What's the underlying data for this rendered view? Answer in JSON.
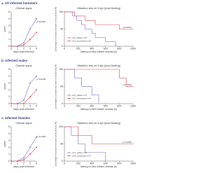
{
  "chart_data": [
    {
      "type": "line",
      "heading": "a. All infected hamsters",
      "title": "Clinical signs",
      "xlabel": "days post infection",
      "ylabel": "score",
      "xlim": [
        0,
        4
      ],
      "xticks": [
        0,
        1,
        2,
        3,
        4
      ],
      "ylim": [
        0,
        5
      ],
      "yticks": [
        0,
        1,
        2,
        3,
        4,
        5
      ],
      "annotation": "p=0.0083",
      "series": [
        {
          "name": "CoV_saline",
          "color": "#6b6bd6",
          "x": [
            0,
            1,
            2,
            3,
            4
          ],
          "values": [
            0,
            0,
            0.5,
            2.5,
            4
          ]
        },
        {
          "name": "CoV_ivermectin",
          "color": "#e03c3c",
          "x": [
            0,
            1,
            2,
            3,
            4
          ],
          "values": [
            0,
            0,
            0.2,
            1,
            2
          ]
        }
      ]
    },
    {
      "type": "step",
      "title": "Olfaction test at 3 dpi (food finding)",
      "xlabel": "latency to find hidden cereals (s)",
      "ylabel": "percentage of animals that have not found food (%)",
      "xlim": [
        0,
        1000
      ],
      "xticks": [
        0,
        200,
        400,
        600,
        800,
        1000
      ],
      "ylim": [
        0,
        100
      ],
      "yticks": [
        0,
        50,
        100
      ],
      "annotation": "p=0.0011",
      "series": [
        {
          "name": "CoV_saline n=8",
          "color": "#6b6bd6",
          "x": [
            0,
            120,
            180,
            250,
            300,
            400,
            450,
            600,
            750
          ],
          "values": [
            100,
            88,
            75,
            63,
            50,
            38,
            25,
            13,
            0
          ]
        },
        {
          "name": "CoV_ivermectin n=8",
          "color": "#e03c3c",
          "x": [
            0,
            150,
            300,
            450,
            800,
            1000
          ],
          "values": [
            100,
            88,
            75,
            63,
            50,
            50
          ]
        }
      ]
    },
    {
      "type": "line",
      "heading": "b. Infected males",
      "title": "Clinical signs",
      "xlabel": "days post infection",
      "ylabel": "score",
      "xlim": [
        0,
        4
      ],
      "xticks": [
        0,
        1,
        2,
        3,
        4
      ],
      "ylim": [
        0,
        5
      ],
      "yticks": [
        0,
        1,
        2,
        3,
        4,
        5
      ],
      "annotation": "p=0.0205",
      "series": [
        {
          "name": "CoV_saline",
          "color": "#6b6bd6",
          "x": [
            0,
            1,
            2,
            3,
            4
          ],
          "values": [
            0,
            0,
            0.5,
            3,
            4
          ]
        },
        {
          "name": "CoV_ivermectin",
          "color": "#e03c3c",
          "x": [
            0,
            1,
            2,
            3,
            4
          ],
          "values": [
            0,
            0,
            0,
            1,
            2
          ]
        }
      ]
    },
    {
      "type": "step",
      "title": "Olfaction test at 3 dpi (food finding)",
      "xlabel": "latency to find hidden cereals (s)",
      "ylabel": "percentage of animals that have not found food (%)",
      "xlim": [
        0,
        1000
      ],
      "xticks": [
        0,
        200,
        400,
        600,
        800,
        1000
      ],
      "ylim": [
        0,
        100
      ],
      "yticks": [
        0,
        50,
        100
      ],
      "annotation": "p=0.0246",
      "series": [
        {
          "name": "CoV_saline n=4",
          "color": "#6b6bd6",
          "x": [
            0,
            150,
            250,
            400,
            500
          ],
          "values": [
            100,
            75,
            50,
            25,
            0
          ]
        },
        {
          "name": "CoV_ivermectin n=4",
          "color": "#e03c3c",
          "x": [
            0,
            800,
            900,
            1000
          ],
          "values": [
            100,
            75,
            50,
            50
          ]
        }
      ]
    },
    {
      "type": "line",
      "heading": "c. Infected females",
      "title": "Clinical signs",
      "xlabel": "days post infection",
      "ylabel": "score",
      "xlim": [
        0,
        4
      ],
      "xticks": [
        0,
        1,
        2,
        3,
        4
      ],
      "ylim": [
        0,
        5
      ],
      "yticks": [
        0,
        1,
        2,
        3,
        4,
        5
      ],
      "annotation": "p=0.1429",
      "series": [
        {
          "name": "CoV_saline",
          "color": "#6b6bd6",
          "x": [
            0,
            1,
            2,
            3,
            4
          ],
          "values": [
            0,
            0,
            0.5,
            2,
            3.5
          ]
        },
        {
          "name": "CoV_ivermectin",
          "color": "#e03c3c",
          "x": [
            0,
            1,
            2,
            3,
            4
          ],
          "values": [
            0,
            0,
            0.2,
            1,
            2
          ]
        }
      ]
    },
    {
      "type": "step",
      "title": "Olfaction test at 3 dpi (food finding)",
      "xlabel": "latency to find hidden cereals (s)",
      "ylabel": "percentage of animals that have not found food (%)",
      "xlim": [
        0,
        1000
      ],
      "xticks": [
        0,
        200,
        400,
        600,
        800,
        1000
      ],
      "ylim": [
        0,
        100
      ],
      "yticks": [
        0,
        50,
        100
      ],
      "annotation": "p=0.0295",
      "series": [
        {
          "name": "CoV_saline n=4",
          "color": "#6b6bd6",
          "x": [
            0,
            100,
            200,
            300,
            600
          ],
          "values": [
            100,
            75,
            50,
            25,
            0
          ]
        },
        {
          "name": "CoV_ivermectin n=4",
          "color": "#e03c3c",
          "x": [
            0,
            200,
            400,
            700,
            1000
          ],
          "values": [
            100,
            75,
            50,
            50,
            50
          ]
        }
      ]
    }
  ]
}
